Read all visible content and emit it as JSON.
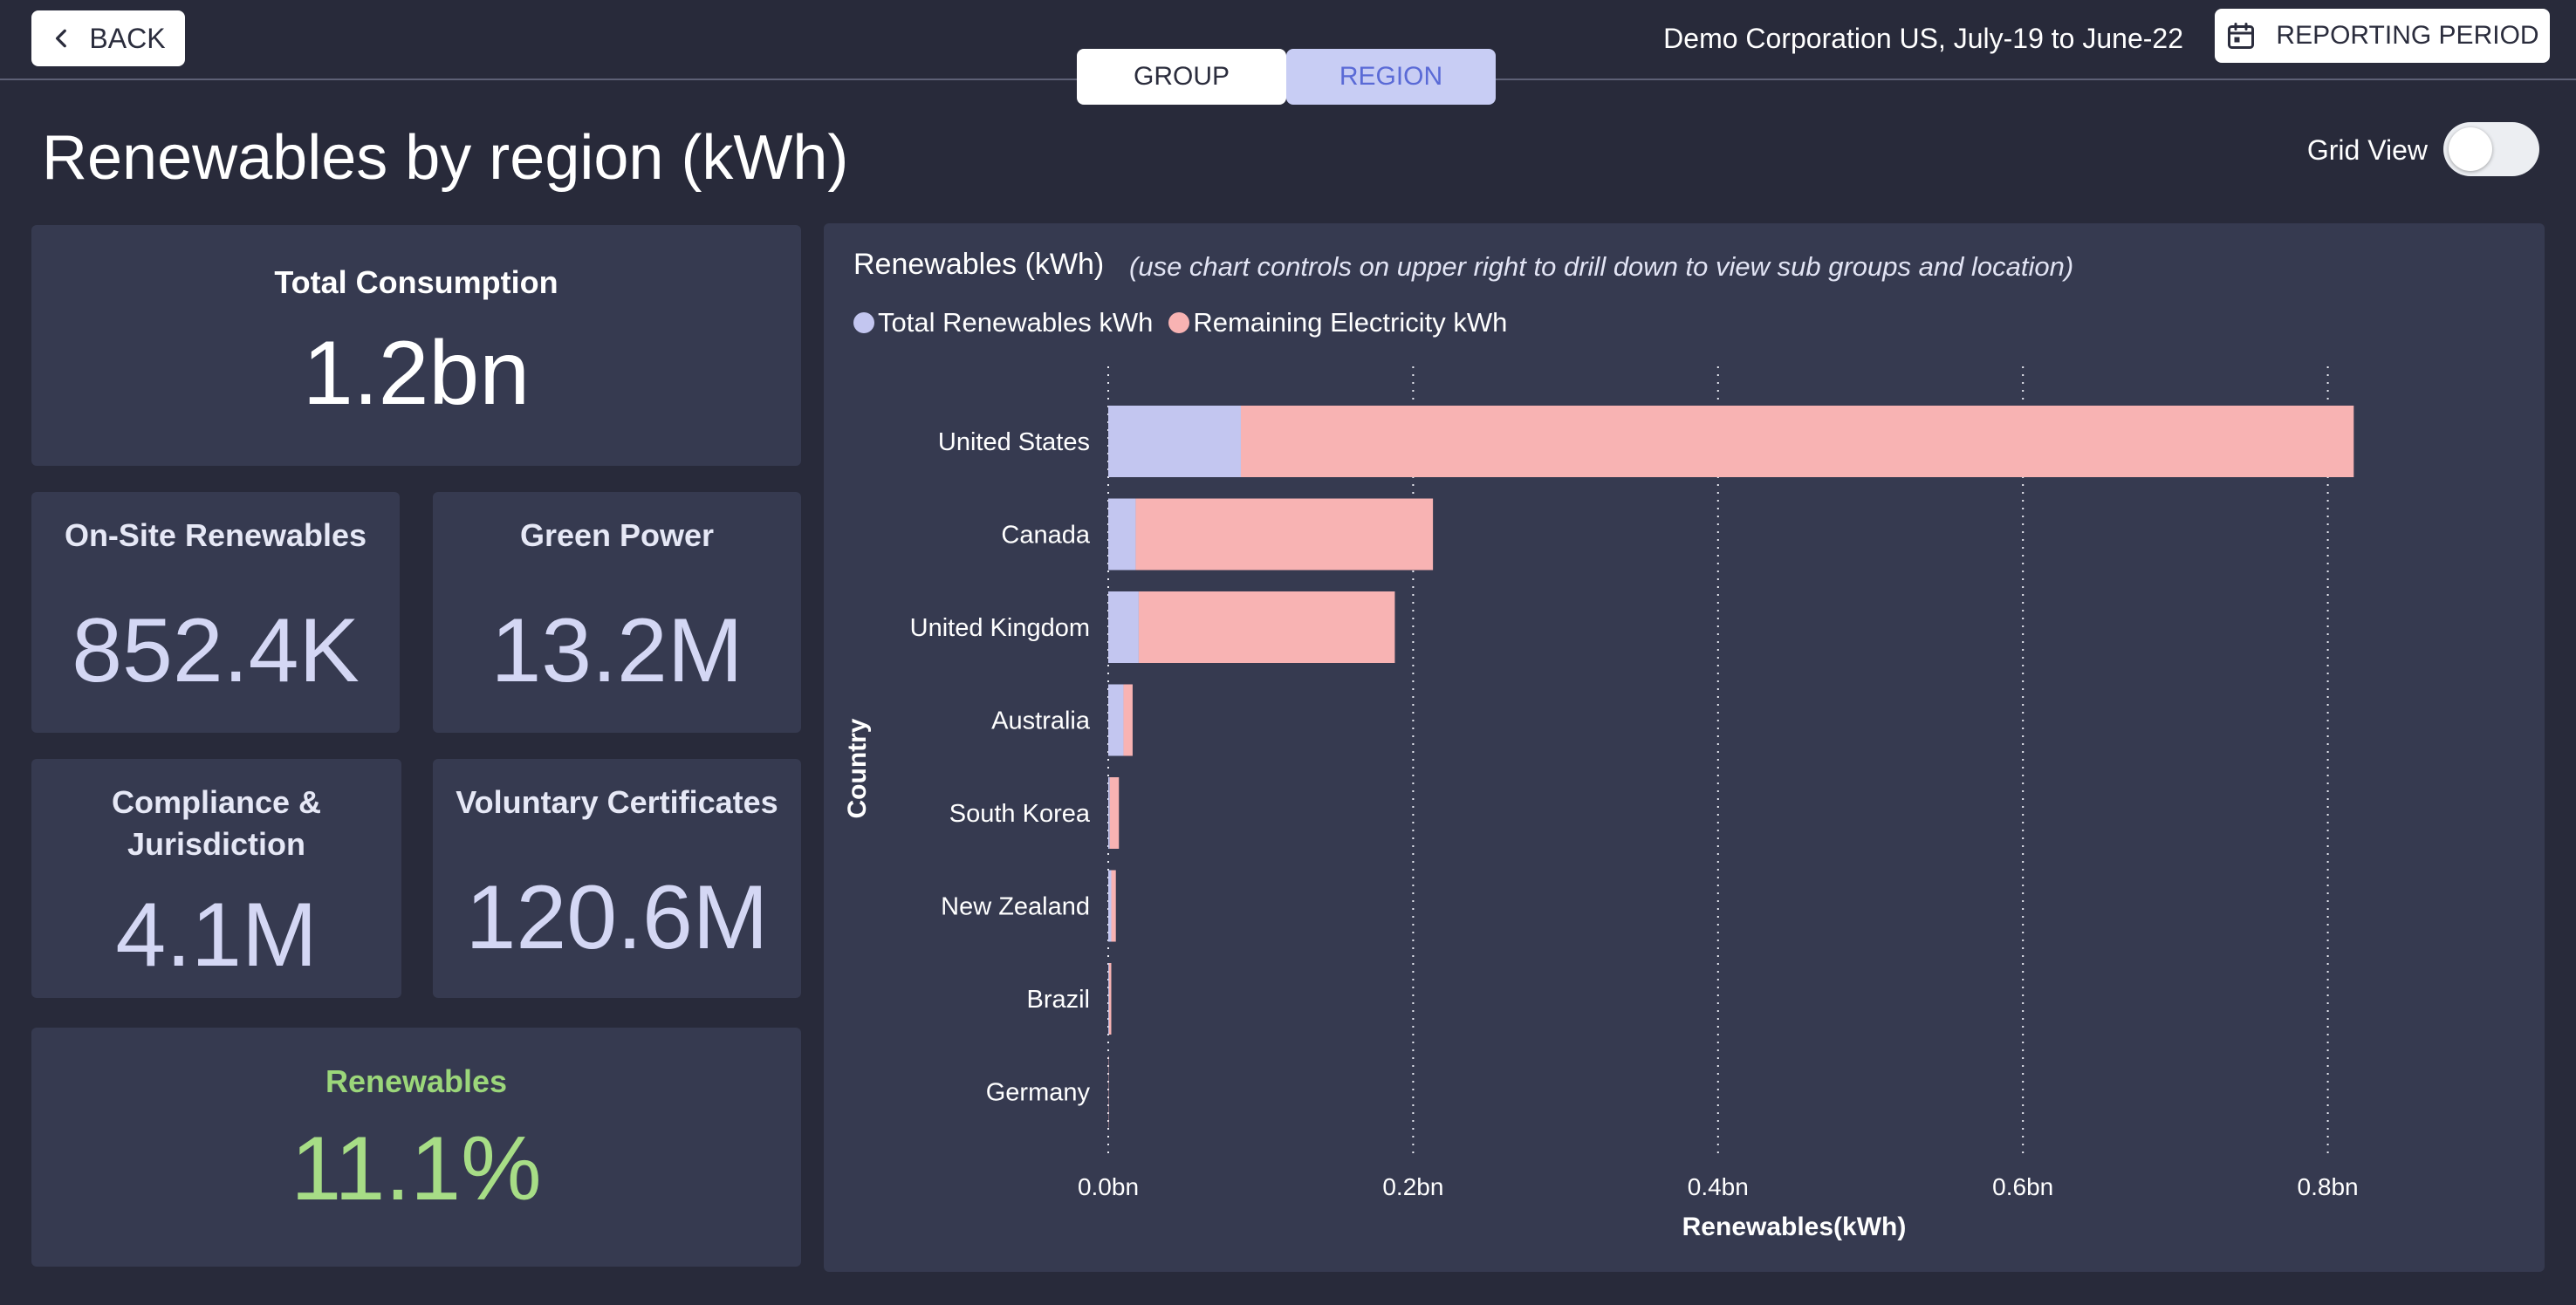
{
  "header": {
    "back_label": "BACK",
    "tabs": [
      {
        "label": "GROUP",
        "active": false
      },
      {
        "label": "REGION",
        "active": true
      }
    ],
    "company_period": "Demo Corporation US, July-19 to June-22",
    "reporting_period_label": "REPORTING PERIOD"
  },
  "page": {
    "title": "Renewables by region (kWh)",
    "grid_view_label": "Grid View",
    "grid_view_on": false
  },
  "kpis": {
    "total_consumption": {
      "label": "Total Consumption",
      "value": "1.2bn"
    },
    "on_site": {
      "label": "On-Site Renewables",
      "value": "852.4K"
    },
    "green_power": {
      "label": "Green Power",
      "value": "13.2M"
    },
    "compliance": {
      "label_line1": "Compliance &",
      "label_line2": "Jurisdiction",
      "value": "4.1M"
    },
    "voluntary": {
      "label": "Voluntary Certificates",
      "value": "120.6M"
    },
    "renewables": {
      "label": "Renewables",
      "value": "11.1%"
    }
  },
  "chart": {
    "title": "Renewables (kWh)",
    "note": "(use chart controls on upper right to drill down to view sub groups and location)"
  },
  "colors": {
    "renewables": "#c3c6f0",
    "remaining": "#f8b3b3",
    "accent_green": "#a7dd86",
    "card_bg": "#363a50",
    "page_bg": "#282a3a"
  },
  "icons": {
    "back": "chevron-left-icon",
    "reporting_period": "calendar-icon"
  },
  "chart_data": {
    "type": "bar",
    "orientation": "horizontal",
    "stacked": true,
    "categories": [
      "United States",
      "Canada",
      "United Kingdom",
      "Australia",
      "South Korea",
      "New Zealand",
      "Brazil",
      "Germany"
    ],
    "series": [
      {
        "name": "Total Renewables kWh",
        "values": [
          0.087,
          0.018,
          0.02,
          0.01,
          0.001,
          0.002,
          0.0005,
          0.0001
        ]
      },
      {
        "name": "Remaining Electricity kWh",
        "values": [
          0.73,
          0.195,
          0.168,
          0.006,
          0.006,
          0.003,
          0.0015,
          0.0002
        ]
      }
    ],
    "x_ticks": [
      0,
      0.2,
      0.4,
      0.6,
      0.8
    ],
    "x_tick_labels": [
      "0.0bn",
      "0.2bn",
      "0.4bn",
      "0.6bn",
      "0.8bn"
    ],
    "xlim": [
      0,
      0.87
    ],
    "xlabel": "Renewables(kWh)",
    "ylabel": "Country",
    "grid": "vertical dotted",
    "legend_position": "top-left"
  }
}
